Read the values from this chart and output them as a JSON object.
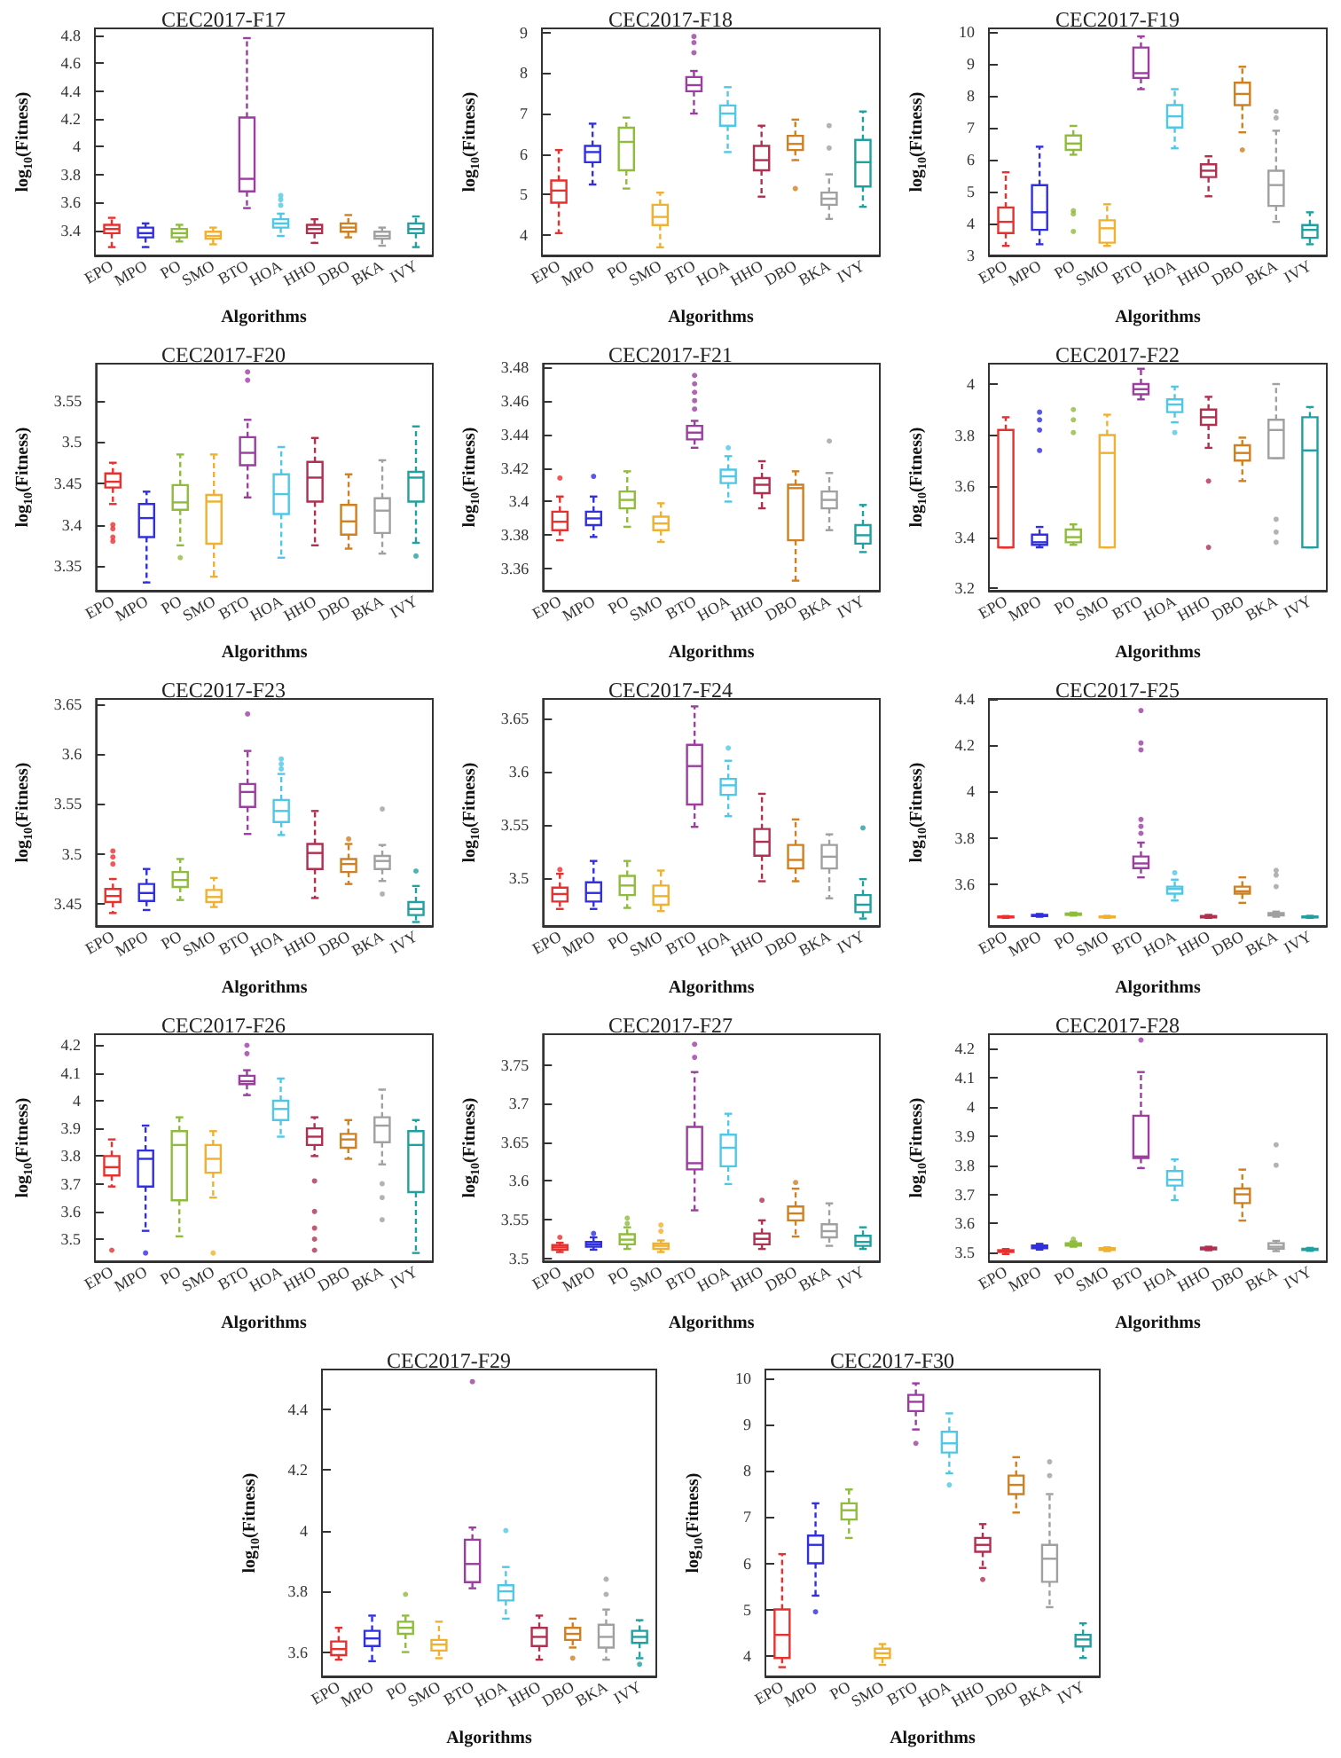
{
  "chart_data": [
    {
      "type": "box",
      "title": "CEC2017-F17",
      "xlabel": "Algorithms",
      "ylabel": "log$_{10}$(Fitness)",
      "categories": [
        "EPO",
        "MPO",
        "PO",
        "SMO",
        "BTO",
        "HOA",
        "HHO",
        "DBO",
        "BKA",
        "IVY"
      ],
      "colors": [
        "#e8312f",
        "#3030e0",
        "#8fbc3c",
        "#f0b030",
        "#9b3ea0",
        "#4fc8e8",
        "#b03050",
        "#d08020",
        "#a0a0a0",
        "#20a0a0"
      ],
      "ylim": [
        3.22,
        4.85
      ],
      "yticks": [
        3.4,
        3.6,
        3.8,
        4,
        4.2,
        4.4,
        4.6,
        4.8
      ],
      "boxes": [
        {
          "low": 3.28,
          "q1": 3.38,
          "median": 3.41,
          "q3": 3.44,
          "high": 3.49
        },
        {
          "low": 3.28,
          "q1": 3.35,
          "median": 3.38,
          "q3": 3.42,
          "high": 3.45
        },
        {
          "low": 3.32,
          "q1": 3.35,
          "median": 3.38,
          "q3": 3.41,
          "high": 3.44
        },
        {
          "low": 3.3,
          "q1": 3.34,
          "median": 3.36,
          "q3": 3.39,
          "high": 3.42
        },
        {
          "low": 3.56,
          "q1": 3.68,
          "median": 3.77,
          "q3": 4.21,
          "high": 4.78
        },
        {
          "low": 3.36,
          "q1": 3.42,
          "median": 3.45,
          "q3": 3.48,
          "high": 3.52,
          "outliers": [
            3.58,
            3.62,
            3.65
          ]
        },
        {
          "low": 3.31,
          "q1": 3.38,
          "median": 3.41,
          "q3": 3.44,
          "high": 3.48
        },
        {
          "low": 3.35,
          "q1": 3.39,
          "median": 3.42,
          "q3": 3.45,
          "high": 3.51
        },
        {
          "low": 3.29,
          "q1": 3.34,
          "median": 3.36,
          "q3": 3.39,
          "high": 3.42
        },
        {
          "low": 3.28,
          "q1": 3.38,
          "median": 3.41,
          "q3": 3.45,
          "high": 3.5
        }
      ]
    },
    {
      "type": "box",
      "title": "CEC2017-F18",
      "xlabel": "Algorithms",
      "ylabel": "log$_{10}$(Fitness)",
      "categories": [
        "EPO",
        "MPO",
        "PO",
        "SMO",
        "BTO",
        "HOA",
        "HHO",
        "DBO",
        "BKA",
        "IVY"
      ],
      "colors": [
        "#e8312f",
        "#3030e0",
        "#8fbc3c",
        "#f0b030",
        "#9b3ea0",
        "#4fc8e8",
        "#b03050",
        "#d08020",
        "#a0a0a0",
        "#20a0a0"
      ],
      "ylim": [
        3.5,
        9.1
      ],
      "yticks": [
        4,
        5,
        6,
        7,
        8,
        9
      ],
      "boxes": [
        {
          "low": 4.05,
          "q1": 4.8,
          "median": 5.1,
          "q3": 5.35,
          "high": 6.1
        },
        {
          "low": 5.25,
          "q1": 5.8,
          "median": 6.05,
          "q3": 6.2,
          "high": 6.75
        },
        {
          "low": 5.15,
          "q1": 5.6,
          "median": 6.3,
          "q3": 6.65,
          "high": 6.9
        },
        {
          "low": 3.7,
          "q1": 4.25,
          "median": 4.45,
          "q3": 4.75,
          "high": 5.05
        },
        {
          "low": 7.0,
          "q1": 7.55,
          "median": 7.7,
          "q3": 7.9,
          "high": 8.05,
          "outliers": [
            8.5,
            8.75,
            8.9
          ]
        },
        {
          "low": 6.05,
          "q1": 6.7,
          "median": 7.0,
          "q3": 7.2,
          "high": 7.65
        },
        {
          "low": 4.95,
          "q1": 5.6,
          "median": 5.85,
          "q3": 6.2,
          "high": 6.7
        },
        {
          "low": 5.85,
          "q1": 6.1,
          "median": 6.25,
          "q3": 6.45,
          "high": 6.85,
          "outliers": [
            5.15
          ]
        },
        {
          "low": 4.4,
          "q1": 4.75,
          "median": 4.9,
          "q3": 5.05,
          "high": 5.5,
          "outliers": [
            6.15,
            6.7
          ]
        },
        {
          "low": 4.7,
          "q1": 5.2,
          "median": 5.8,
          "q3": 6.35,
          "high": 7.05
        }
      ]
    },
    {
      "type": "box",
      "title": "CEC2017-F19",
      "xlabel": "Algorithms",
      "ylabel": "log$_{10}$(Fitness)",
      "categories": [
        "EPO",
        "MPO",
        "PO",
        "SMO",
        "BTO",
        "HOA",
        "HHO",
        "DBO",
        "BKA",
        "IVY"
      ],
      "colors": [
        "#e8312f",
        "#3030e0",
        "#8fbc3c",
        "#f0b030",
        "#9b3ea0",
        "#4fc8e8",
        "#b03050",
        "#d08020",
        "#a0a0a0",
        "#20a0a0"
      ],
      "ylim": [
        3,
        10.1
      ],
      "yticks": [
        3,
        4,
        5,
        6,
        7,
        8,
        9,
        10
      ],
      "boxes": [
        {
          "low": 3.3,
          "q1": 3.7,
          "median": 4.05,
          "q3": 4.5,
          "high": 5.6
        },
        {
          "low": 3.35,
          "q1": 3.8,
          "median": 4.35,
          "q3": 5.2,
          "high": 6.4
        },
        {
          "low": 6.15,
          "q1": 6.3,
          "median": 6.5,
          "q3": 6.75,
          "high": 7.05,
          "outliers": [
            3.75,
            4.3,
            4.4
          ]
        },
        {
          "low": 3.3,
          "q1": 3.4,
          "median": 3.85,
          "q3": 4.1,
          "high": 4.6
        },
        {
          "low": 8.2,
          "q1": 8.55,
          "median": 8.7,
          "q3": 9.5,
          "high": 9.85
        },
        {
          "low": 6.35,
          "q1": 7.0,
          "median": 7.35,
          "q3": 7.7,
          "high": 8.2
        },
        {
          "low": 4.85,
          "q1": 5.45,
          "median": 5.65,
          "q3": 5.85,
          "high": 6.1
        },
        {
          "low": 6.85,
          "q1": 7.7,
          "median": 8.05,
          "q3": 8.4,
          "high": 8.9,
          "outliers": [
            6.3
          ]
        },
        {
          "low": 4.05,
          "q1": 4.55,
          "median": 5.2,
          "q3": 5.65,
          "high": 6.9,
          "outliers": [
            7.3,
            7.5
          ]
        },
        {
          "low": 3.35,
          "q1": 3.55,
          "median": 3.8,
          "q3": 3.95,
          "high": 4.35
        }
      ]
    },
    {
      "type": "box",
      "title": "CEC2017-F20",
      "xlabel": "Algorithms",
      "ylabel": "log$_{10}$(Fitness)",
      "categories": [
        "EPO",
        "MPO",
        "PO",
        "SMO",
        "BTO",
        "HOA",
        "HHO",
        "DBO",
        "BKA",
        "IVY"
      ],
      "colors": [
        "#e8312f",
        "#3030e0",
        "#8fbc3c",
        "#f0b030",
        "#9b3ea0",
        "#4fc8e8",
        "#b03050",
        "#d08020",
        "#a0a0a0",
        "#20a0a0"
      ],
      "ylim": [
        3.32,
        3.595
      ],
      "yticks": [
        3.35,
        3.4,
        3.45,
        3.5,
        3.55
      ],
      "boxes": [
        {
          "low": 3.425,
          "q1": 3.445,
          "median": 3.452,
          "q3": 3.462,
          "high": 3.475,
          "outliers": [
            3.38,
            3.385,
            3.395,
            3.4
          ]
        },
        {
          "low": 3.33,
          "q1": 3.385,
          "median": 3.408,
          "q3": 3.425,
          "high": 3.44
        },
        {
          "low": 3.375,
          "q1": 3.418,
          "median": 3.427,
          "q3": 3.448,
          "high": 3.485,
          "outliers": [
            3.36
          ]
        },
        {
          "low": 3.337,
          "q1": 3.377,
          "median": 3.428,
          "q3": 3.436,
          "high": 3.485
        },
        {
          "low": 3.433,
          "q1": 3.472,
          "median": 3.487,
          "q3": 3.506,
          "high": 3.527,
          "outliers": [
            3.575,
            3.585
          ]
        },
        {
          "low": 3.36,
          "q1": 3.413,
          "median": 3.437,
          "q3": 3.461,
          "high": 3.494
        },
        {
          "low": 3.375,
          "q1": 3.428,
          "median": 3.457,
          "q3": 3.476,
          "high": 3.505
        },
        {
          "low": 3.371,
          "q1": 3.388,
          "median": 3.404,
          "q3": 3.424,
          "high": 3.461
        },
        {
          "low": 3.365,
          "q1": 3.39,
          "median": 3.417,
          "q3": 3.432,
          "high": 3.478
        },
        {
          "low": 3.378,
          "q1": 3.428,
          "median": 3.457,
          "q3": 3.464,
          "high": 3.519,
          "outliers": [
            3.362
          ]
        }
      ]
    },
    {
      "type": "box",
      "title": "CEC2017-F21",
      "xlabel": "Algorithms",
      "ylabel": "log$_{10}$(Fitness)",
      "categories": [
        "EPO",
        "MPO",
        "PO",
        "SMO",
        "BTO",
        "HOA",
        "HHO",
        "DBO",
        "BKA",
        "IVY"
      ],
      "colors": [
        "#e8312f",
        "#3030e0",
        "#8fbc3c",
        "#f0b030",
        "#9b3ea0",
        "#4fc8e8",
        "#b03050",
        "#d08020",
        "#a0a0a0",
        "#20a0a0"
      ],
      "ylim": [
        3.347,
        3.482
      ],
      "yticks": [
        3.36,
        3.38,
        3.4,
        3.42,
        3.44,
        3.46,
        3.48
      ],
      "boxes": [
        {
          "low": 3.377,
          "q1": 3.383,
          "median": 3.388,
          "q3": 3.394,
          "high": 3.403,
          "outliers": [
            3.414
          ]
        },
        {
          "low": 3.379,
          "q1": 3.386,
          "median": 3.39,
          "q3": 3.394,
          "high": 3.403,
          "outliers": [
            3.415
          ]
        },
        {
          "low": 3.385,
          "q1": 3.396,
          "median": 3.401,
          "q3": 3.406,
          "high": 3.418
        },
        {
          "low": 3.376,
          "q1": 3.383,
          "median": 3.387,
          "q3": 3.391,
          "high": 3.399
        },
        {
          "low": 3.432,
          "q1": 3.437,
          "median": 3.441,
          "q3": 3.445,
          "high": 3.448,
          "outliers": [
            3.455,
            3.46,
            3.465,
            3.47,
            3.475
          ]
        },
        {
          "low": 3.4,
          "q1": 3.411,
          "median": 3.415,
          "q3": 3.419,
          "high": 3.427,
          "outliers": [
            3.432
          ]
        },
        {
          "low": 3.396,
          "q1": 3.405,
          "median": 3.41,
          "q3": 3.414,
          "high": 3.424
        },
        {
          "low": 3.353,
          "q1": 3.377,
          "median": 3.408,
          "q3": 3.41,
          "high": 3.418
        },
        {
          "low": 3.383,
          "q1": 3.396,
          "median": 3.401,
          "q3": 3.406,
          "high": 3.417,
          "outliers": [
            3.436
          ]
        },
        {
          "low": 3.37,
          "q1": 3.375,
          "median": 3.38,
          "q3": 3.386,
          "high": 3.398
        }
      ]
    },
    {
      "type": "box",
      "title": "CEC2017-F22",
      "xlabel": "Algorithms",
      "ylabel": "log$_{10}$(Fitness)",
      "categories": [
        "EPO",
        "MPO",
        "PO",
        "SMO",
        "BTO",
        "HOA",
        "HHO",
        "DBO",
        "BKA",
        "IVY"
      ],
      "colors": [
        "#e8312f",
        "#3030e0",
        "#8fbc3c",
        "#f0b030",
        "#9b3ea0",
        "#4fc8e8",
        "#b03050",
        "#d08020",
        "#a0a0a0",
        "#20a0a0"
      ],
      "ylim": [
        3.19,
        4.08
      ],
      "yticks": [
        3.2,
        3.4,
        3.6,
        3.8,
        4
      ],
      "boxes": [
        {
          "low": 3.36,
          "q1": 3.36,
          "median": 3.36,
          "q3": 3.82,
          "high": 3.87
        },
        {
          "low": 3.36,
          "q1": 3.37,
          "median": 3.38,
          "q3": 3.41,
          "high": 3.44,
          "outliers": [
            3.74,
            3.82,
            3.86,
            3.89
          ]
        },
        {
          "low": 3.37,
          "q1": 3.38,
          "median": 3.4,
          "q3": 3.43,
          "high": 3.45,
          "outliers": [
            3.81,
            3.86,
            3.9
          ]
        },
        {
          "low": 3.36,
          "q1": 3.36,
          "median": 3.73,
          "q3": 3.8,
          "high": 3.88
        },
        {
          "low": 3.94,
          "q1": 3.96,
          "median": 3.98,
          "q3": 4.0,
          "high": 4.06
        },
        {
          "low": 3.85,
          "q1": 3.89,
          "median": 3.92,
          "q3": 3.94,
          "high": 3.99,
          "outliers": [
            3.81
          ]
        },
        {
          "low": 3.75,
          "q1": 3.84,
          "median": 3.87,
          "q3": 3.9,
          "high": 3.95,
          "outliers": [
            3.62,
            3.36
          ]
        },
        {
          "low": 3.62,
          "q1": 3.7,
          "median": 3.73,
          "q3": 3.76,
          "high": 3.79
        },
        {
          "low": 3.71,
          "q1": 3.71,
          "median": 3.82,
          "q3": 3.86,
          "high": 4.0,
          "outliers": [
            3.47,
            3.42,
            3.38
          ]
        },
        {
          "low": 3.36,
          "q1": 3.36,
          "median": 3.74,
          "q3": 3.87,
          "high": 3.91
        }
      ]
    },
    {
      "type": "box",
      "title": "CEC2017-F23",
      "xlabel": "Algorithms",
      "ylabel": "log$_{10}$(Fitness)",
      "categories": [
        "EPO",
        "MPO",
        "PO",
        "SMO",
        "BTO",
        "HOA",
        "HHO",
        "DBO",
        "BKA",
        "IVY"
      ],
      "colors": [
        "#e8312f",
        "#3030e0",
        "#8fbc3c",
        "#f0b030",
        "#9b3ea0",
        "#4fc8e8",
        "#b03050",
        "#d08020",
        "#a0a0a0",
        "#20a0a0"
      ],
      "ylim": [
        3.428,
        3.655
      ],
      "yticks": [
        3.45,
        3.5,
        3.55,
        3.6,
        3.65
      ],
      "boxes": [
        {
          "low": 3.441,
          "q1": 3.452,
          "median": 3.458,
          "q3": 3.465,
          "high": 3.475,
          "outliers": [
            3.49,
            3.497,
            3.503
          ]
        },
        {
          "low": 3.444,
          "q1": 3.453,
          "median": 3.461,
          "q3": 3.47,
          "high": 3.485
        },
        {
          "low": 3.454,
          "q1": 3.467,
          "median": 3.474,
          "q3": 3.482,
          "high": 3.495
        },
        {
          "low": 3.447,
          "q1": 3.452,
          "median": 3.457,
          "q3": 3.464,
          "high": 3.476
        },
        {
          "low": 3.52,
          "q1": 3.547,
          "median": 3.562,
          "q3": 3.57,
          "high": 3.603,
          "outliers": [
            3.64
          ]
        },
        {
          "low": 3.519,
          "q1": 3.532,
          "median": 3.543,
          "q3": 3.554,
          "high": 3.58,
          "outliers": [
            3.585,
            3.59,
            3.595
          ]
        },
        {
          "low": 3.456,
          "q1": 3.485,
          "median": 3.501,
          "q3": 3.51,
          "high": 3.543
        },
        {
          "low": 3.47,
          "q1": 3.482,
          "median": 3.49,
          "q3": 3.495,
          "high": 3.51,
          "outliers": [
            3.515
          ]
        },
        {
          "low": 3.473,
          "q1": 3.485,
          "median": 3.493,
          "q3": 3.498,
          "high": 3.509,
          "outliers": [
            3.46,
            3.545
          ]
        },
        {
          "low": 3.432,
          "q1": 3.439,
          "median": 3.445,
          "q3": 3.452,
          "high": 3.468,
          "outliers": [
            3.483
          ]
        }
      ]
    },
    {
      "type": "box",
      "title": "CEC2017-F24",
      "xlabel": "Algorithms",
      "ylabel": "log$_{10}$(Fitness)",
      "categories": [
        "EPO",
        "MPO",
        "PO",
        "SMO",
        "BTO",
        "HOA",
        "HHO",
        "DBO",
        "BKA",
        "IVY"
      ],
      "colors": [
        "#e8312f",
        "#3030e0",
        "#8fbc3c",
        "#f0b030",
        "#9b3ea0",
        "#4fc8e8",
        "#b03050",
        "#d08020",
        "#a0a0a0",
        "#20a0a0"
      ],
      "ylim": [
        3.455,
        3.668
      ],
      "yticks": [
        3.5,
        3.55,
        3.6,
        3.65
      ],
      "boxes": [
        {
          "low": 3.471,
          "q1": 3.478,
          "median": 3.485,
          "q3": 3.491,
          "high": 3.504,
          "outliers": [
            3.508
          ]
        },
        {
          "low": 3.471,
          "q1": 3.478,
          "median": 3.486,
          "q3": 3.496,
          "high": 3.516
        },
        {
          "low": 3.472,
          "q1": 3.484,
          "median": 3.493,
          "q3": 3.502,
          "high": 3.516
        },
        {
          "low": 3.469,
          "q1": 3.475,
          "median": 3.483,
          "q3": 3.493,
          "high": 3.507
        },
        {
          "low": 3.548,
          "q1": 3.569,
          "median": 3.605,
          "q3": 3.625,
          "high": 3.661
        },
        {
          "low": 3.558,
          "q1": 3.578,
          "median": 3.587,
          "q3": 3.593,
          "high": 3.61,
          "outliers": [
            3.622
          ]
        },
        {
          "low": 3.497,
          "q1": 3.521,
          "median": 3.534,
          "q3": 3.546,
          "high": 3.579
        },
        {
          "low": 3.497,
          "q1": 3.509,
          "median": 3.517,
          "q3": 3.531,
          "high": 3.555
        },
        {
          "low": 3.481,
          "q1": 3.509,
          "median": 3.52,
          "q3": 3.531,
          "high": 3.541
        },
        {
          "low": 3.462,
          "q1": 3.468,
          "median": 3.475,
          "q3": 3.484,
          "high": 3.499,
          "outliers": [
            3.547
          ]
        }
      ]
    },
    {
      "type": "box",
      "title": "CEC2017-F25",
      "xlabel": "Algorithms",
      "ylabel": "log$_{10}$(Fitness)",
      "categories": [
        "EPO",
        "MPO",
        "PO",
        "SMO",
        "BTO",
        "HOA",
        "HHO",
        "DBO",
        "BKA",
        "IVY"
      ],
      "colors": [
        "#e8312f",
        "#3030e0",
        "#8fbc3c",
        "#f0b030",
        "#9b3ea0",
        "#4fc8e8",
        "#b03050",
        "#d08020",
        "#a0a0a0",
        "#20a0a0"
      ],
      "ylim": [
        3.42,
        4.4
      ],
      "yticks": [
        3.6,
        3.8,
        4,
        4.2,
        4.4
      ],
      "boxes": [
        {
          "low": 3.455,
          "q1": 3.457,
          "median": 3.459,
          "q3": 3.461,
          "high": 3.463
        },
        {
          "low": 3.46,
          "q1": 3.463,
          "median": 3.465,
          "q3": 3.468,
          "high": 3.472
        },
        {
          "low": 3.465,
          "q1": 3.468,
          "median": 3.471,
          "q3": 3.474,
          "high": 3.478
        },
        {
          "low": 3.455,
          "q1": 3.457,
          "median": 3.459,
          "q3": 3.461,
          "high": 3.464
        },
        {
          "low": 3.63,
          "q1": 3.67,
          "median": 3.69,
          "q3": 3.72,
          "high": 3.78,
          "outliers": [
            3.82,
            3.85,
            3.88,
            4.18,
            4.21,
            4.35
          ]
        },
        {
          "low": 3.53,
          "q1": 3.56,
          "median": 3.58,
          "q3": 3.59,
          "high": 3.62,
          "outliers": [
            3.65
          ]
        },
        {
          "low": 3.455,
          "q1": 3.457,
          "median": 3.46,
          "q3": 3.463,
          "high": 3.468
        },
        {
          "low": 3.52,
          "q1": 3.56,
          "median": 3.57,
          "q3": 3.59,
          "high": 3.63
        },
        {
          "low": 3.46,
          "q1": 3.466,
          "median": 3.47,
          "q3": 3.476,
          "high": 3.482,
          "outliers": [
            3.59,
            3.64,
            3.66
          ]
        },
        {
          "low": 3.455,
          "q1": 3.457,
          "median": 3.459,
          "q3": 3.461,
          "high": 3.464
        }
      ]
    },
    {
      "type": "box",
      "title": "CEC2017-F26",
      "xlabel": "Algorithms",
      "ylabel": "log$_{10}$(Fitness)",
      "categories": [
        "EPO",
        "MPO",
        "PO",
        "SMO",
        "BTO",
        "HOA",
        "HHO",
        "DBO",
        "BKA",
        "IVY"
      ],
      "colors": [
        "#e8312f",
        "#3030e0",
        "#8fbc3c",
        "#f0b030",
        "#9b3ea0",
        "#4fc8e8",
        "#b03050",
        "#d08020",
        "#a0a0a0",
        "#20a0a0"
      ],
      "ylim": [
        3.42,
        4.24
      ],
      "yticks": [
        3.5,
        3.6,
        3.7,
        3.8,
        3.9,
        4,
        4.1,
        4.2
      ],
      "boxes": [
        {
          "low": 3.69,
          "q1": 3.73,
          "median": 3.76,
          "q3": 3.8,
          "high": 3.86,
          "outliers": [
            3.46
          ]
        },
        {
          "low": 3.53,
          "q1": 3.69,
          "median": 3.79,
          "q3": 3.82,
          "high": 3.91,
          "outliers": [
            3.45
          ]
        },
        {
          "low": 3.51,
          "q1": 3.64,
          "median": 3.84,
          "q3": 3.89,
          "high": 3.94
        },
        {
          "low": 3.65,
          "q1": 3.74,
          "median": 3.79,
          "q3": 3.84,
          "high": 3.89,
          "outliers": [
            3.45
          ]
        },
        {
          "low": 4.02,
          "q1": 4.06,
          "median": 4.07,
          "q3": 4.09,
          "high": 4.11,
          "outliers": [
            4.17,
            4.2
          ]
        },
        {
          "low": 3.87,
          "q1": 3.93,
          "median": 3.97,
          "q3": 4.0,
          "high": 4.08
        },
        {
          "low": 3.8,
          "q1": 3.84,
          "median": 3.87,
          "q3": 3.9,
          "high": 3.94,
          "outliers": [
            3.71,
            3.6,
            3.54,
            3.5,
            3.46
          ]
        },
        {
          "low": 3.79,
          "q1": 3.83,
          "median": 3.86,
          "q3": 3.88,
          "high": 3.93
        },
        {
          "low": 3.77,
          "q1": 3.85,
          "median": 3.91,
          "q3": 3.94,
          "high": 4.04,
          "outliers": [
            3.7,
            3.65,
            3.57
          ]
        },
        {
          "low": 3.45,
          "q1": 3.67,
          "median": 3.84,
          "q3": 3.89,
          "high": 3.93
        }
      ]
    },
    {
      "type": "box",
      "title": "CEC2017-F27",
      "xlabel": "Algorithms",
      "ylabel": "log$_{10}$(Fitness)",
      "categories": [
        "EPO",
        "MPO",
        "PO",
        "SMO",
        "BTO",
        "HOA",
        "HHO",
        "DBO",
        "BKA",
        "IVY"
      ],
      "colors": [
        "#e8312f",
        "#3030e0",
        "#8fbc3c",
        "#f0b030",
        "#9b3ea0",
        "#4fc8e8",
        "#b03050",
        "#d08020",
        "#a0a0a0",
        "#20a0a0"
      ],
      "ylim": [
        3.496,
        3.79
      ],
      "yticks": [
        3.5,
        3.55,
        3.6,
        3.65,
        3.7,
        3.75
      ],
      "boxes": [
        {
          "low": 3.508,
          "q1": 3.511,
          "median": 3.514,
          "q3": 3.517,
          "high": 3.52,
          "outliers": [
            3.527
          ]
        },
        {
          "low": 3.511,
          "q1": 3.515,
          "median": 3.518,
          "q3": 3.521,
          "high": 3.527,
          "outliers": [
            3.532
          ]
        },
        {
          "low": 3.512,
          "q1": 3.518,
          "median": 3.524,
          "q3": 3.531,
          "high": 3.54,
          "outliers": [
            3.545,
            3.552
          ]
        },
        {
          "low": 3.508,
          "q1": 3.512,
          "median": 3.516,
          "q3": 3.519,
          "high": 3.523,
          "outliers": [
            3.535,
            3.543
          ]
        },
        {
          "low": 3.562,
          "q1": 3.615,
          "median": 3.623,
          "q3": 3.67,
          "high": 3.741,
          "outliers": [
            3.76,
            3.777
          ]
        },
        {
          "low": 3.596,
          "q1": 3.619,
          "median": 3.643,
          "q3": 3.66,
          "high": 3.687
        },
        {
          "low": 3.512,
          "q1": 3.518,
          "median": 3.525,
          "q3": 3.532,
          "high": 3.549,
          "outliers": [
            3.575
          ]
        },
        {
          "low": 3.528,
          "q1": 3.549,
          "median": 3.558,
          "q3": 3.567,
          "high": 3.59,
          "outliers": [
            3.598
          ]
        },
        {
          "low": 3.516,
          "q1": 3.527,
          "median": 3.535,
          "q3": 3.544,
          "high": 3.571
        },
        {
          "low": 3.512,
          "q1": 3.516,
          "median": 3.521,
          "q3": 3.529,
          "high": 3.54
        }
      ]
    },
    {
      "type": "box",
      "title": "CEC2017-F28",
      "xlabel": "Algorithms",
      "ylabel": "log$_{10}$(Fitness)",
      "categories": [
        "EPO",
        "MPO",
        "PO",
        "SMO",
        "BTO",
        "HOA",
        "HHO",
        "DBO",
        "BKA",
        "IVY"
      ],
      "colors": [
        "#e8312f",
        "#3030e0",
        "#8fbc3c",
        "#f0b030",
        "#9b3ea0",
        "#4fc8e8",
        "#b03050",
        "#d08020",
        "#a0a0a0",
        "#20a0a0"
      ],
      "ylim": [
        3.47,
        4.25
      ],
      "yticks": [
        3.5,
        3.6,
        3.7,
        3.8,
        3.9,
        4,
        4.1,
        4.2
      ],
      "boxes": [
        {
          "low": 3.495,
          "q1": 3.502,
          "median": 3.505,
          "q3": 3.508,
          "high": 3.512
        },
        {
          "low": 3.51,
          "q1": 3.515,
          "median": 3.52,
          "q3": 3.524,
          "high": 3.53
        },
        {
          "low": 3.52,
          "q1": 3.524,
          "median": 3.528,
          "q3": 3.532,
          "high": 3.538,
          "outliers": [
            3.546
          ]
        },
        {
          "low": 3.505,
          "q1": 3.509,
          "median": 3.512,
          "q3": 3.515,
          "high": 3.518
        },
        {
          "low": 3.79,
          "q1": 3.825,
          "median": 3.83,
          "q3": 3.97,
          "high": 4.12,
          "outliers": [
            4.23
          ]
        },
        {
          "low": 3.68,
          "q1": 3.73,
          "median": 3.75,
          "q3": 3.78,
          "high": 3.82
        },
        {
          "low": 3.508,
          "q1": 3.511,
          "median": 3.514,
          "q3": 3.517,
          "high": 3.52
        },
        {
          "low": 3.61,
          "q1": 3.67,
          "median": 3.7,
          "q3": 3.72,
          "high": 3.785
        },
        {
          "low": 3.505,
          "q1": 3.513,
          "median": 3.52,
          "q3": 3.532,
          "high": 3.54,
          "outliers": [
            3.8,
            3.87
          ]
        },
        {
          "low": 3.506,
          "q1": 3.509,
          "median": 3.511,
          "q3": 3.513,
          "high": 3.516
        }
      ]
    },
    {
      "type": "box",
      "title": "CEC2017-F29",
      "xlabel": "Algorithms",
      "ylabel": "log$_{10}$(Fitness)",
      "categories": [
        "EPO",
        "MPO",
        "PO",
        "SMO",
        "BTO",
        "HOA",
        "HHO",
        "DBO",
        "BKA",
        "IVY"
      ],
      "colors": [
        "#e8312f",
        "#3030e0",
        "#8fbc3c",
        "#f0b030",
        "#9b3ea0",
        "#4fc8e8",
        "#b03050",
        "#d08020",
        "#a0a0a0",
        "#20a0a0"
      ],
      "ylim": [
        3.52,
        4.53
      ],
      "yticks": [
        3.6,
        3.8,
        4,
        4.2,
        4.4
      ],
      "boxes": [
        {
          "low": 3.575,
          "q1": 3.59,
          "median": 3.61,
          "q3": 3.635,
          "high": 3.68
        },
        {
          "low": 3.57,
          "q1": 3.62,
          "median": 3.645,
          "q3": 3.67,
          "high": 3.72
        },
        {
          "low": 3.6,
          "q1": 3.66,
          "median": 3.68,
          "q3": 3.7,
          "high": 3.72,
          "outliers": [
            3.79
          ]
        },
        {
          "low": 3.58,
          "q1": 3.605,
          "median": 3.625,
          "q3": 3.64,
          "high": 3.7
        },
        {
          "low": 3.81,
          "q1": 3.83,
          "median": 3.89,
          "q3": 3.97,
          "high": 4.01,
          "outliers": [
            4.49
          ]
        },
        {
          "low": 3.71,
          "q1": 3.77,
          "median": 3.8,
          "q3": 3.82,
          "high": 3.88,
          "outliers": [
            4.0
          ]
        },
        {
          "low": 3.575,
          "q1": 3.62,
          "median": 3.65,
          "q3": 3.68,
          "high": 3.72
        },
        {
          "low": 3.615,
          "q1": 3.64,
          "median": 3.66,
          "q3": 3.68,
          "high": 3.71,
          "outliers": [
            3.58
          ]
        },
        {
          "low": 3.575,
          "q1": 3.615,
          "median": 3.65,
          "q3": 3.69,
          "high": 3.74,
          "outliers": [
            3.79,
            3.84
          ]
        },
        {
          "low": 3.58,
          "q1": 3.63,
          "median": 3.65,
          "q3": 3.67,
          "high": 3.705,
          "outliers": [
            3.56
          ]
        }
      ]
    },
    {
      "type": "box",
      "title": "CEC2017-F30",
      "xlabel": "Algorithms",
      "ylabel": "log$_{10}$(Fitness)",
      "categories": [
        "EPO",
        "MPO",
        "PO",
        "SMO",
        "BTO",
        "HOA",
        "HHO",
        "DBO",
        "BKA",
        "IVY"
      ],
      "colors": [
        "#e8312f",
        "#3030e0",
        "#8fbc3c",
        "#f0b030",
        "#9b3ea0",
        "#4fc8e8",
        "#b03050",
        "#d08020",
        "#a0a0a0",
        "#20a0a0"
      ],
      "ylim": [
        3.55,
        10.2
      ],
      "yticks": [
        4,
        5,
        6,
        7,
        8,
        9,
        10
      ],
      "boxes": [
        {
          "low": 3.75,
          "q1": 3.95,
          "median": 4.45,
          "q3": 5.0,
          "high": 6.2
        },
        {
          "low": 5.3,
          "q1": 6.0,
          "median": 6.4,
          "q3": 6.6,
          "high": 7.3,
          "outliers": [
            4.95
          ]
        },
        {
          "low": 6.55,
          "q1": 6.95,
          "median": 7.15,
          "q3": 7.3,
          "high": 7.6
        },
        {
          "low": 3.8,
          "q1": 3.95,
          "median": 4.05,
          "q3": 4.15,
          "high": 4.25
        },
        {
          "low": 8.9,
          "q1": 9.3,
          "median": 9.5,
          "q3": 9.65,
          "high": 9.9,
          "outliers": [
            8.6
          ]
        },
        {
          "low": 7.95,
          "q1": 8.4,
          "median": 8.6,
          "q3": 8.85,
          "high": 9.25,
          "outliers": [
            7.7
          ]
        },
        {
          "low": 5.9,
          "q1": 6.25,
          "median": 6.4,
          "q3": 6.55,
          "high": 6.85,
          "outliers": [
            5.65
          ]
        },
        {
          "low": 7.1,
          "q1": 7.5,
          "median": 7.7,
          "q3": 7.9,
          "high": 8.3
        },
        {
          "low": 5.05,
          "q1": 5.6,
          "median": 6.1,
          "q3": 6.4,
          "high": 7.5,
          "outliers": [
            7.9,
            8.2
          ]
        },
        {
          "low": 3.95,
          "q1": 4.2,
          "median": 4.35,
          "q3": 4.45,
          "high": 4.7
        }
      ]
    }
  ]
}
